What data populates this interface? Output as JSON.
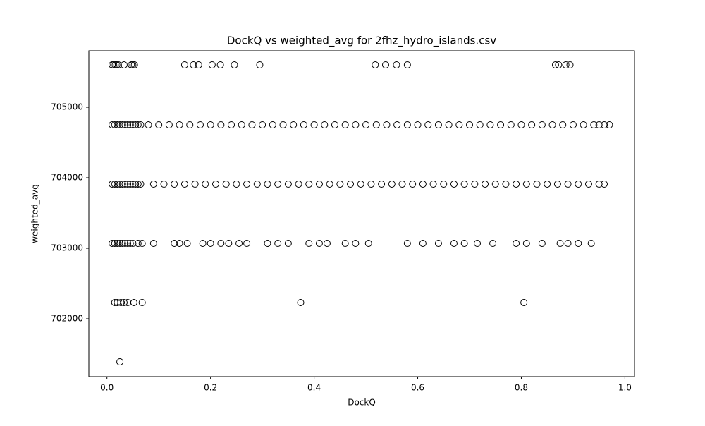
{
  "chart_data": {
    "type": "scatter",
    "title": "DockQ vs weighted_avg for 2fhz_hydro_islands.csv",
    "xlabel": "DockQ",
    "ylabel": "weighted_avg",
    "xlim": [
      -0.035,
      1.0185
    ],
    "ylim": [
      701180,
      705800
    ],
    "xticks": [
      {
        "value": 0,
        "label": "0.0"
      },
      0.2,
      0.4,
      0.6,
      0.8,
      {
        "value": 1,
        "label": "1.0"
      }
    ],
    "yticks": [
      702000,
      703000,
      704000,
      705000
    ],
    "grid": false,
    "series": [
      {
        "color": "#000000",
        "x": [
          0.01,
          0.013,
          0.016,
          0.019,
          0.022,
          0.033,
          0.047,
          0.05,
          0.053,
          0.15,
          0.167,
          0.177,
          0.203,
          0.219,
          0.246,
          0.295,
          0.518,
          0.538,
          0.559,
          0.58,
          0.866,
          0.872,
          0.886,
          0.894
        ],
        "values": [
          705600,
          705600,
          705600,
          705600,
          705600,
          705600,
          705600,
          705600,
          705600,
          705600,
          705600,
          705600,
          705600,
          705600,
          705600,
          705600,
          705600,
          705600,
          705600,
          705600,
          705600,
          705600,
          705600,
          705600
        ]
      },
      {
        "color": "#000000",
        "x": [
          0.01,
          0.015,
          0.02,
          0.025,
          0.03,
          0.035,
          0.04,
          0.045,
          0.05,
          0.055,
          0.06,
          0.065,
          0.08,
          0.1,
          0.12,
          0.14,
          0.16,
          0.18,
          0.2,
          0.22,
          0.24,
          0.26,
          0.28,
          0.3,
          0.32,
          0.34,
          0.36,
          0.38,
          0.4,
          0.42,
          0.44,
          0.46,
          0.48,
          0.5,
          0.52,
          0.54,
          0.56,
          0.58,
          0.6,
          0.62,
          0.64,
          0.66,
          0.68,
          0.7,
          0.72,
          0.74,
          0.76,
          0.78,
          0.8,
          0.82,
          0.84,
          0.86,
          0.88,
          0.9,
          0.92,
          0.94,
          0.95,
          0.96,
          0.97
        ],
        "values": [
          704750,
          704750,
          704750,
          704750,
          704750,
          704750,
          704750,
          704750,
          704750,
          704750,
          704750,
          704750,
          704750,
          704750,
          704750,
          704750,
          704750,
          704750,
          704750,
          704750,
          704750,
          704750,
          704750,
          704750,
          704750,
          704750,
          704750,
          704750,
          704750,
          704750,
          704750,
          704750,
          704750,
          704750,
          704750,
          704750,
          704750,
          704750,
          704750,
          704750,
          704750,
          704750,
          704750,
          704750,
          704750,
          704750,
          704750,
          704750,
          704750,
          704750,
          704750,
          704750,
          704750,
          704750,
          704750,
          704750,
          704750,
          704750,
          704750
        ]
      },
      {
        "color": "#000000",
        "x": [
          0.01,
          0.015,
          0.02,
          0.025,
          0.03,
          0.035,
          0.04,
          0.045,
          0.05,
          0.055,
          0.06,
          0.065,
          0.09,
          0.11,
          0.13,
          0.15,
          0.17,
          0.19,
          0.21,
          0.23,
          0.25,
          0.27,
          0.29,
          0.31,
          0.33,
          0.35,
          0.37,
          0.39,
          0.41,
          0.43,
          0.45,
          0.47,
          0.49,
          0.51,
          0.53,
          0.55,
          0.57,
          0.59,
          0.61,
          0.63,
          0.65,
          0.67,
          0.69,
          0.71,
          0.73,
          0.75,
          0.77,
          0.79,
          0.81,
          0.83,
          0.85,
          0.87,
          0.89,
          0.91,
          0.93,
          0.95,
          0.96
        ],
        "values": [
          703910,
          703910,
          703910,
          703910,
          703910,
          703910,
          703910,
          703910,
          703910,
          703910,
          703910,
          703910,
          703910,
          703910,
          703910,
          703910,
          703910,
          703910,
          703910,
          703910,
          703910,
          703910,
          703910,
          703910,
          703910,
          703910,
          703910,
          703910,
          703910,
          703910,
          703910,
          703910,
          703910,
          703910,
          703910,
          703910,
          703910,
          703910,
          703910,
          703910,
          703910,
          703910,
          703910,
          703910,
          703910,
          703910,
          703910,
          703910,
          703910,
          703910,
          703910,
          703910,
          703910,
          703910,
          703910,
          703910,
          703910
        ]
      },
      {
        "color": "#000000",
        "x": [
          0.01,
          0.015,
          0.02,
          0.025,
          0.03,
          0.035,
          0.04,
          0.045,
          0.05,
          0.06,
          0.068,
          0.09,
          0.13,
          0.14,
          0.155,
          0.185,
          0.2,
          0.22,
          0.235,
          0.255,
          0.27,
          0.31,
          0.33,
          0.35,
          0.39,
          0.41,
          0.425,
          0.46,
          0.48,
          0.505,
          0.58,
          0.61,
          0.64,
          0.67,
          0.69,
          0.715,
          0.745,
          0.79,
          0.81,
          0.84,
          0.875,
          0.89,
          0.91,
          0.935
        ],
        "values": [
          703070,
          703070,
          703070,
          703070,
          703070,
          703070,
          703070,
          703070,
          703070,
          703070,
          703070,
          703070,
          703070,
          703070,
          703070,
          703070,
          703070,
          703070,
          703070,
          703070,
          703070,
          703070,
          703070,
          703070,
          703070,
          703070,
          703070,
          703070,
          703070,
          703070,
          703070,
          703070,
          703070,
          703070,
          703070,
          703070,
          703070,
          703070,
          703070,
          703070,
          703070,
          703070,
          703070,
          703070
        ]
      },
      {
        "color": "#000000",
        "x": [
          0.015,
          0.02,
          0.027,
          0.033,
          0.04,
          0.052,
          0.068,
          0.374,
          0.805
        ],
        "values": [
          702230,
          702230,
          702230,
          702230,
          702230,
          702230,
          702230,
          702230,
          702230
        ]
      },
      {
        "color": "#000000",
        "x": [
          0.025
        ],
        "values": [
          701390
        ]
      }
    ]
  }
}
